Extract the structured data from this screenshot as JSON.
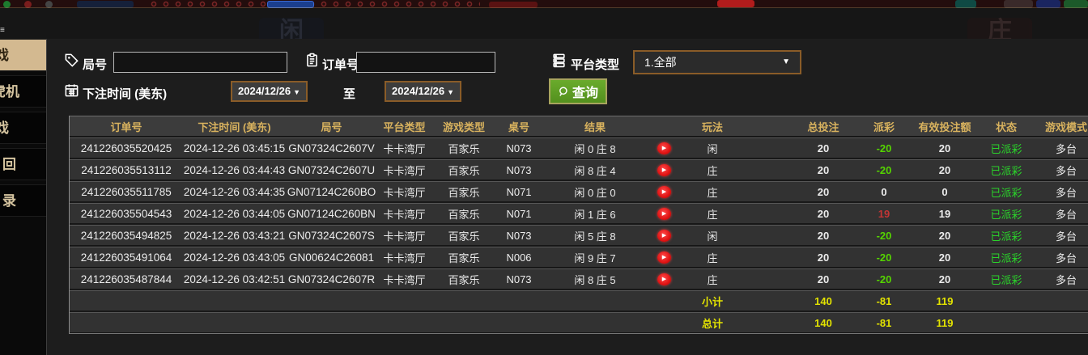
{
  "sidebar": {
    "items": [
      {
        "label": "戏",
        "active": true
      },
      {
        "label": "虎机",
        "active": false
      },
      {
        "label": "戏",
        "active": false
      },
      {
        "label": "回",
        "active": false
      },
      {
        "label": "录",
        "active": false
      }
    ]
  },
  "filters": {
    "game_no_label": "局号",
    "order_no_label": "订单号",
    "platform_label": "平台类型",
    "platform_value": "1.全部",
    "bet_time_label": "下注时间 (美东)",
    "date_from": "2024/12/26",
    "to_label": "至",
    "date_to": "2024/12/26",
    "search_label": "查询"
  },
  "table": {
    "headers": [
      "订单号",
      "下注时间 (美东)",
      "局号",
      "平台类型",
      "游戏类型",
      "桌号",
      "结果",
      "",
      "玩法",
      "",
      "总投注",
      "派彩",
      "有效投注额",
      "状态",
      "游戏模式"
    ],
    "rows": [
      {
        "order_no": "241226035520425",
        "bet_time": "2024-12-26 03:45:15",
        "game_no": "GN07324C2607V",
        "platform": "卡卡湾厅",
        "game_type": "百家乐",
        "table_no": "N073",
        "result": "闲 0 庄 8",
        "bet_side": "闲",
        "total_bet": "20",
        "payout": "-20",
        "payout_class": "neg",
        "valid_bet": "20",
        "status": "已派彩",
        "mode": "多台"
      },
      {
        "order_no": "241226035513112",
        "bet_time": "2024-12-26 03:44:43",
        "game_no": "GN07324C2607U",
        "platform": "卡卡湾厅",
        "game_type": "百家乐",
        "table_no": "N073",
        "result": "闲 8 庄 4",
        "bet_side": "庄",
        "total_bet": "20",
        "payout": "-20",
        "payout_class": "neg",
        "valid_bet": "20",
        "status": "已派彩",
        "mode": "多台"
      },
      {
        "order_no": "241226035511785",
        "bet_time": "2024-12-26 03:44:35",
        "game_no": "GN07124C260BO",
        "platform": "卡卡湾厅",
        "game_type": "百家乐",
        "table_no": "N071",
        "result": "闲 0 庄 0",
        "bet_side": "庄",
        "total_bet": "20",
        "payout": "0",
        "payout_class": "zero",
        "valid_bet": "0",
        "status": "已派彩",
        "mode": "多台"
      },
      {
        "order_no": "241226035504543",
        "bet_time": "2024-12-26 03:44:05",
        "game_no": "GN07124C260BN",
        "platform": "卡卡湾厅",
        "game_type": "百家乐",
        "table_no": "N071",
        "result": "闲 1 庄 6",
        "bet_side": "庄",
        "total_bet": "20",
        "payout": "19",
        "payout_class": "pos",
        "valid_bet": "19",
        "status": "已派彩",
        "mode": "多台"
      },
      {
        "order_no": "241226035494825",
        "bet_time": "2024-12-26 03:43:21",
        "game_no": "GN07324C2607S",
        "platform": "卡卡湾厅",
        "game_type": "百家乐",
        "table_no": "N073",
        "result": "闲 5 庄 8",
        "bet_side": "闲",
        "total_bet": "20",
        "payout": "-20",
        "payout_class": "neg",
        "valid_bet": "20",
        "status": "已派彩",
        "mode": "多台"
      },
      {
        "order_no": "241226035491064",
        "bet_time": "2024-12-26 03:43:05",
        "game_no": "GN00624C26081",
        "platform": "卡卡湾厅",
        "game_type": "百家乐",
        "table_no": "N006",
        "result": "闲 9 庄 7",
        "bet_side": "庄",
        "total_bet": "20",
        "payout": "-20",
        "payout_class": "neg",
        "valid_bet": "20",
        "status": "已派彩",
        "mode": "多台"
      },
      {
        "order_no": "241226035487844",
        "bet_time": "2024-12-26 03:42:51",
        "game_no": "GN07324C2607R",
        "platform": "卡卡湾厅",
        "game_type": "百家乐",
        "table_no": "N073",
        "result": "闲 8 庄 5",
        "bet_side": "庄",
        "total_bet": "20",
        "payout": "-20",
        "payout_class": "neg",
        "valid_bet": "20",
        "status": "已派彩",
        "mode": "多台"
      }
    ],
    "subtotal": {
      "label": "小计",
      "total_bet": "140",
      "payout": "-81",
      "valid_bet": "119"
    },
    "grand_total": {
      "label": "总计",
      "total_bet": "140",
      "payout": "-81",
      "valid_bet": "119"
    }
  },
  "colors": {
    "header_gold": "#d8b25e",
    "totals_yellow": "#e3e300",
    "win_red": "#c23535",
    "loss_green": "#55d400",
    "status_green": "#2ad42a",
    "accent_brown_border": "#8a5c28",
    "search_button_green": "#5d9c22",
    "sidebar_active_tan": "#d3b990",
    "play_button_red": "#dd0f0f"
  }
}
